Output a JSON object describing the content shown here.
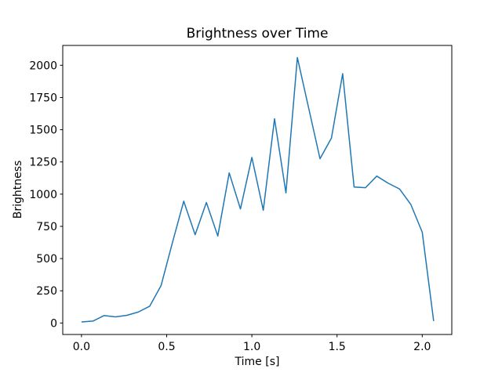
{
  "figure": {
    "background_color": "#ffffff",
    "text_color": "#000000",
    "spine_color": "#000000"
  },
  "chart_data": {
    "type": "line",
    "title": "Brightness over Time",
    "xlabel": "Time [s]",
    "ylabel": "Brightness",
    "x": [
      0.0,
      0.067,
      0.133,
      0.2,
      0.267,
      0.333,
      0.4,
      0.467,
      0.533,
      0.6,
      0.667,
      0.733,
      0.8,
      0.867,
      0.933,
      1.0,
      1.067,
      1.133,
      1.2,
      1.267,
      1.333,
      1.4,
      1.467,
      1.533,
      1.6,
      1.667,
      1.733,
      1.8,
      1.867,
      1.933,
      2.0,
      2.067
    ],
    "y": [
      8,
      15,
      58,
      48,
      60,
      85,
      130,
      290,
      620,
      945,
      685,
      935,
      675,
      1165,
      885,
      1285,
      875,
      1585,
      1010,
      2060,
      1670,
      1275,
      1435,
      1935,
      1055,
      1050,
      1140,
      1085,
      1040,
      920,
      705,
      15
    ],
    "xlim": [
      -0.11,
      2.1735
    ],
    "ylim": [
      -89,
      2154
    ],
    "xticks": [
      0.0,
      0.5,
      1.0,
      1.5,
      2.0
    ],
    "xtick_labels": [
      "0.0",
      "0.5",
      "1.0",
      "1.5",
      "2.0"
    ],
    "yticks": [
      0,
      250,
      500,
      750,
      1000,
      1250,
      1500,
      1750,
      2000
    ],
    "ytick_labels": [
      "0",
      "250",
      "500",
      "750",
      "1000",
      "1250",
      "1500",
      "1750",
      "2000"
    ],
    "line_color": "#1f77b4",
    "line_width": 1.5,
    "grid": false,
    "legend_position": "none"
  }
}
